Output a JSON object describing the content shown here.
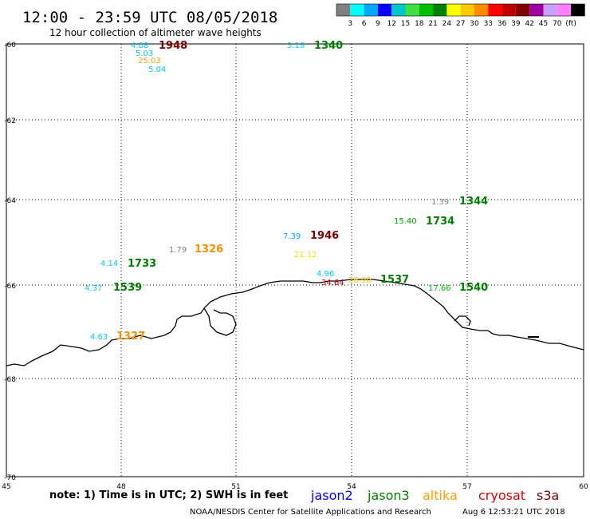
{
  "header": {
    "title": "12:00 - 23:59 UTC 08/05/2018",
    "subtitle": "12 hour collection of altimeter wave heights"
  },
  "legend": {
    "colors": [
      "#808080",
      "#00ffff",
      "#00a8ff",
      "#0000ff",
      "#00c8c8",
      "#40e040",
      "#00c000",
      "#008000",
      "#ffff00",
      "#ffc800",
      "#ff8c00",
      "#ff0000",
      "#c00000",
      "#800000",
      "#a000a0",
      "#c8a0ff",
      "#ff80ff",
      "#000000"
    ],
    "labels": [
      "3",
      "6",
      "9",
      "12",
      "15",
      "18",
      "21",
      "24",
      "27",
      "30",
      "33",
      "36",
      "39",
      "42",
      "45",
      "70",
      "(ft)"
    ]
  },
  "axes": {
    "lon_ticks": [
      "45",
      "48",
      "51",
      "54",
      "57",
      "60"
    ],
    "lat_ticks": [
      "-60",
      "-62",
      "-64",
      "-66",
      "-68",
      "-70"
    ]
  },
  "observations": [
    {
      "value": "4.08",
      "time": "1948",
      "value_color": "#00c8ff",
      "time_color": "#800000"
    },
    {
      "value": "5.03",
      "time": "",
      "value_color": "#00c8ff",
      "time_color": "#800000"
    },
    {
      "value": "25.03",
      "time": "",
      "value_color": "#ffa000",
      "time_color": "#800000"
    },
    {
      "value": "5.04",
      "time": "",
      "value_color": "#00c8ff",
      "time_color": "#800000"
    },
    {
      "value": "3.19",
      "time": "1340",
      "value_color": "#00c8ff",
      "time_color": "#008000"
    },
    {
      "value": "1.39",
      "time": "1344",
      "value_color": "#808080",
      "time_color": "#008000"
    },
    {
      "value": "15.40",
      "time": "1734",
      "value_color": "#00a000",
      "time_color": "#008000"
    },
    {
      "value": "7.39",
      "time": "1946",
      "value_color": "#00a8ff",
      "time_color": "#800000"
    },
    {
      "value": "1.79",
      "time": "1326",
      "value_color": "#808080",
      "time_color": "#ff8c00"
    },
    {
      "value": "21.12",
      "time": "",
      "value_color": "#e8e800",
      "time_color": "#800000"
    },
    {
      "value": "4.14",
      "time": "1733",
      "value_color": "#00c8ff",
      "time_color": "#008000"
    },
    {
      "value": "4.96",
      "time": "",
      "value_color": "#00c8ff",
      "time_color": "#008000"
    },
    {
      "value": "34.64",
      "time": "",
      "value_color": "#c00000",
      "time_color": "#008000"
    },
    {
      "value": "26.90",
      "time": "1537",
      "value_color": "#ffc800",
      "time_color": "#008000"
    },
    {
      "value": "17.66",
      "time": "1540",
      "value_color": "#00c000",
      "time_color": "#008000"
    },
    {
      "value": "4.37",
      "time": "1539",
      "value_color": "#00c8ff",
      "time_color": "#008000"
    },
    {
      "value": "4.63",
      "time": "1327",
      "value_color": "#00c8ff",
      "time_color": "#ff8c00"
    }
  ],
  "footer": {
    "note": "note: 1) Time is in UTC; 2) SWH is in feet",
    "satellites": [
      {
        "name": "jason2",
        "color": "#0000ff"
      },
      {
        "name": "jason3",
        "color": "#008000"
      },
      {
        "name": "altika",
        "color": "#ffa000"
      },
      {
        "name": "cryosat",
        "color": "#e00000"
      },
      {
        "name": "s3a",
        "color": "#800000"
      }
    ],
    "credit": "NOAA/NESDIS Center for Satellite Applications and Research",
    "timestamp": "Aug  6 12:53:21 UTC 2018"
  }
}
